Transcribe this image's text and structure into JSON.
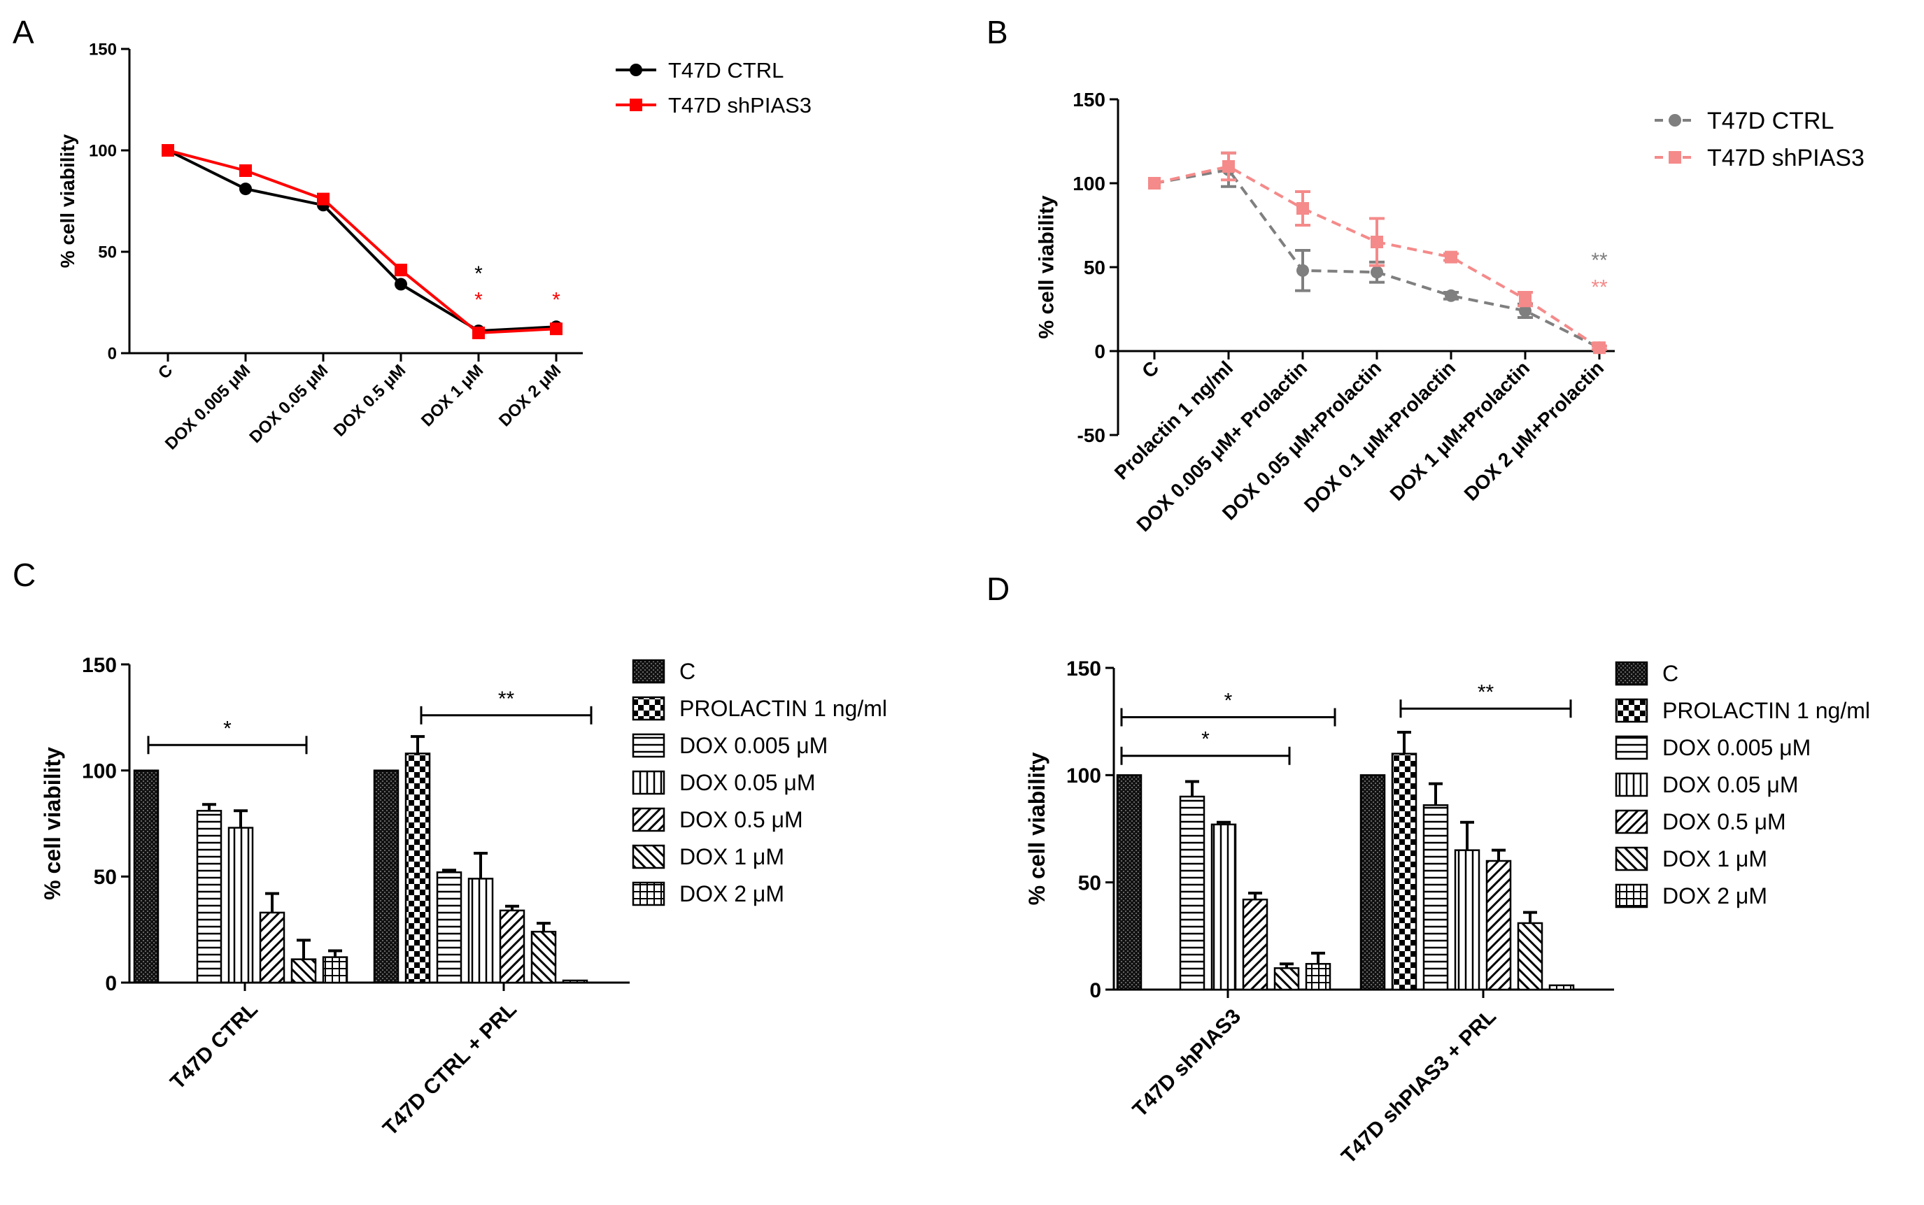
{
  "colors": {
    "ctrl_a": "#000000",
    "shpias3_a": "#ff0000",
    "ctrl_b": "#7f7f7f",
    "shpias3_b": "#f58a8a",
    "axis": "#000000"
  },
  "chart_data": [
    {
      "panel": "A",
      "type": "line",
      "ylabel": "% cell viability",
      "xlabel": "",
      "ylim": [
        0,
        150
      ],
      "yticks": [
        "0",
        "50",
        "100",
        "150"
      ],
      "categories": [
        "C",
        "DOX 0.005 μM",
        "DOX 0.05 μM",
        "DOX 0.5 μM",
        "DOX 1 μM",
        "DOX 2 μM"
      ],
      "series": [
        {
          "name": "T47D CTRL",
          "color": "#000000",
          "marker": "circle",
          "values": [
            100,
            81,
            73,
            34,
            11,
            13
          ]
        },
        {
          "name": "T47D shPIAS3",
          "color": "#ff0000",
          "marker": "square",
          "values": [
            100,
            90,
            76,
            41,
            10,
            12
          ]
        }
      ],
      "annotations": [
        {
          "text": "*",
          "color": "#000000",
          "category": 4,
          "y": 40
        },
        {
          "text": "*",
          "color": "#ff0000",
          "category": 4,
          "y": 27
        },
        {
          "text": "*",
          "color": "#ff0000",
          "category": 5,
          "y": 27
        }
      ],
      "legend": {
        "position": "top-right"
      }
    },
    {
      "panel": "B",
      "type": "line",
      "ylabel": "% cell viability",
      "xlabel": "",
      "ylim": [
        -50,
        150
      ],
      "yticks": [
        "-50",
        "0",
        "50",
        "100",
        "150"
      ],
      "categories": [
        "C",
        "Prolactin 1 ng/ml",
        "DOX 0.005 μM+ Prolactin",
        "DOX 0.05 μM+Prolactin",
        "DOX 0.1 μM+Prolactin",
        "DOX 1 μM+Prolactin",
        "DOX 2 μM+Prolactin"
      ],
      "series": [
        {
          "name": "T47D CTRL",
          "color": "#7f7f7f",
          "marker": "circle",
          "values": [
            100,
            108,
            48,
            47,
            33,
            24,
            2
          ],
          "errors": [
            0,
            10,
            12,
            6,
            2,
            4,
            1
          ]
        },
        {
          "name": "T47D shPIAS3",
          "color": "#f58a8a",
          "marker": "square",
          "values": [
            100,
            110,
            85,
            65,
            56,
            31,
            2
          ],
          "errors": [
            0,
            8,
            10,
            14,
            2,
            4,
            1
          ]
        }
      ],
      "annotations": [
        {
          "text": "**",
          "color": "#7f7f7f",
          "category": 6,
          "y": 55
        },
        {
          "text": "**",
          "color": "#f58a8a",
          "category": 6,
          "y": 39
        }
      ],
      "legend": {
        "position": "top-right"
      }
    },
    {
      "panel": "C",
      "type": "bar",
      "ylabel": "% cell viability",
      "xlabel": "",
      "ylim": [
        0,
        150
      ],
      "yticks": [
        "0",
        "50",
        "100",
        "150"
      ],
      "categories": [
        "T47D CTRL",
        "T47D CTRL + PRL"
      ],
      "series": [
        {
          "name": "C",
          "pattern": "dense",
          "values": [
            100,
            100
          ],
          "errors": [
            0,
            0
          ]
        },
        {
          "name": "PROLACTIN 1 ng/ml",
          "pattern": "checker",
          "values": [
            null,
            108
          ],
          "errors": [
            null,
            8
          ]
        },
        {
          "name": "DOX 0.005 μM",
          "pattern": "hlines",
          "values": [
            81,
            52
          ],
          "errors": [
            3,
            1
          ]
        },
        {
          "name": "DOX 0.05 μM",
          "pattern": "vlines",
          "values": [
            73,
            49
          ],
          "errors": [
            8,
            12
          ]
        },
        {
          "name": "DOX 0.5 μM",
          "pattern": "diag",
          "values": [
            33,
            34
          ],
          "errors": [
            9,
            2
          ]
        },
        {
          "name": "DOX 1 μM",
          "pattern": "antidiag",
          "values": [
            11,
            24
          ],
          "errors": [
            9,
            4
          ]
        },
        {
          "name": "DOX 2 μM",
          "pattern": "grid",
          "values": [
            12,
            1
          ],
          "errors": [
            3,
            0
          ]
        }
      ],
      "brackets": [
        {
          "text": "*",
          "group": 0,
          "y": 112
        },
        {
          "text": "**",
          "group": 1,
          "y": 126
        }
      ],
      "legend": {
        "position": "right"
      }
    },
    {
      "panel": "D",
      "type": "bar",
      "ylabel": "% cell viability",
      "xlabel": "",
      "ylim": [
        0,
        150
      ],
      "yticks": [
        "0",
        "50",
        "100",
        "150"
      ],
      "categories": [
        "T47D shPIAS3",
        "T47D shPIAS3 + PRL"
      ],
      "series": [
        {
          "name": "C",
          "pattern": "dense",
          "values": [
            100,
            100
          ],
          "errors": [
            0,
            0
          ]
        },
        {
          "name": "PROLACTIN 1 ng/ml",
          "pattern": "checker",
          "values": [
            null,
            110
          ],
          "errors": [
            null,
            10
          ]
        },
        {
          "name": "DOX 0.005 μM",
          "pattern": "hlines",
          "values": [
            90,
            86
          ],
          "errors": [
            7,
            10
          ]
        },
        {
          "name": "DOX 0.05 μM",
          "pattern": "vlines",
          "values": [
            77,
            65
          ],
          "errors": [
            1,
            13
          ]
        },
        {
          "name": "DOX 0.5 μM",
          "pattern": "diag",
          "values": [
            42,
            60
          ],
          "errors": [
            3,
            5
          ]
        },
        {
          "name": "DOX 1 μM",
          "pattern": "antidiag",
          "values": [
            10,
            31
          ],
          "errors": [
            2,
            5
          ]
        },
        {
          "name": "DOX 2 μM",
          "pattern": "grid",
          "values": [
            12,
            2
          ],
          "errors": [
            5,
            0
          ]
        }
      ],
      "brackets": [
        {
          "text": "*",
          "group": 0,
          "y": 127,
          "span": "wide"
        },
        {
          "text": "*",
          "group": 0,
          "y": 109,
          "span": "narrow"
        },
        {
          "text": "**",
          "group": 1,
          "y": 131
        }
      ],
      "legend": {
        "position": "right"
      }
    }
  ]
}
